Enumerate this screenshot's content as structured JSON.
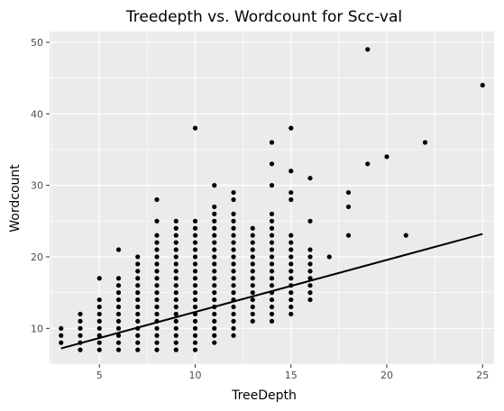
{
  "chart_data": {
    "type": "scatter",
    "title": "Treedepth vs. Wordcount for Scc-val",
    "xlabel": "TreeDepth",
    "ylabel": "Wordcount",
    "xlim": [
      2.4,
      25.6
    ],
    "ylim": [
      5.0,
      51.5
    ],
    "x_ticks": [
      5,
      10,
      15,
      20,
      25
    ],
    "y_ticks": [
      10,
      20,
      30,
      40,
      50
    ],
    "grid": true,
    "legend": "none",
    "colors": {
      "panel": "#ebebeb",
      "grid": "#ffffff",
      "points": "#000000",
      "line": "#000000"
    },
    "column_ranges": [
      {
        "x": 3,
        "y_from": 8,
        "y_to": 10
      },
      {
        "x": 4,
        "y_from": 7,
        "y_to": 12
      },
      {
        "x": 5,
        "y_from": 7,
        "y_to": 14
      },
      {
        "x": 6,
        "y_from": 7,
        "y_to": 17
      },
      {
        "x": 7,
        "y_from": 7,
        "y_to": 20
      },
      {
        "x": 8,
        "y_from": 7,
        "y_to": 23
      },
      {
        "x": 9,
        "y_from": 7,
        "y_to": 25
      },
      {
        "x": 10,
        "y_from": 7,
        "y_to": 25
      },
      {
        "x": 11,
        "y_from": 8,
        "y_to": 27
      },
      {
        "x": 12,
        "y_from": 9,
        "y_to": 26
      },
      {
        "x": 13,
        "y_from": 11,
        "y_to": 24
      },
      {
        "x": 14,
        "y_from": 11,
        "y_to": 26
      },
      {
        "x": 15,
        "y_from": 12,
        "y_to": 23
      },
      {
        "x": 16,
        "y_from": 14,
        "y_to": 21
      }
    ],
    "points": [
      {
        "x": 5,
        "y": 17
      },
      {
        "x": 6,
        "y": 21
      },
      {
        "x": 8,
        "y": 25
      },
      {
        "x": 8,
        "y": 28
      },
      {
        "x": 10,
        "y": 38
      },
      {
        "x": 11,
        "y": 30
      },
      {
        "x": 12,
        "y": 28
      },
      {
        "x": 12,
        "y": 29
      },
      {
        "x": 14,
        "y": 30
      },
      {
        "x": 14,
        "y": 33
      },
      {
        "x": 14,
        "y": 36
      },
      {
        "x": 15,
        "y": 28
      },
      {
        "x": 15,
        "y": 29
      },
      {
        "x": 15,
        "y": 32
      },
      {
        "x": 15,
        "y": 38
      },
      {
        "x": 16,
        "y": 25
      },
      {
        "x": 16,
        "y": 31
      },
      {
        "x": 17,
        "y": 20
      },
      {
        "x": 18,
        "y": 23
      },
      {
        "x": 18,
        "y": 27
      },
      {
        "x": 18,
        "y": 29
      },
      {
        "x": 19,
        "y": 33
      },
      {
        "x": 19,
        "y": 49
      },
      {
        "x": 20,
        "y": 34
      },
      {
        "x": 21,
        "y": 23
      },
      {
        "x": 22,
        "y": 36
      },
      {
        "x": 25,
        "y": 44
      }
    ],
    "trend_line": {
      "x": [
        3,
        25
      ],
      "y": [
        7.2,
        23.2
      ]
    }
  }
}
